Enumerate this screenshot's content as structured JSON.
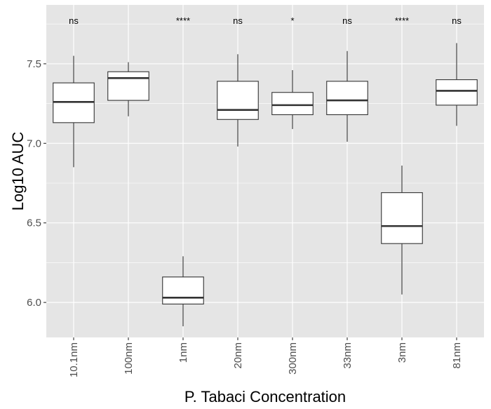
{
  "chart_data": {
    "type": "boxplot",
    "title": "",
    "xlabel": "P. Tabaci Concentration",
    "ylabel": "Log10 AUC",
    "ylim": [
      5.78,
      7.87
    ],
    "yticks": [
      6.0,
      6.5,
      7.0,
      7.5
    ],
    "ytick_labels": [
      "6.0",
      "6.5",
      "7.0",
      "7.5"
    ],
    "grid": true,
    "background": "#e5e5e5",
    "gridline_color": "#ffffff",
    "box_fill": "#ffffff",
    "box_stroke": "#333333",
    "categories": [
      "10.1nm",
      "100nm",
      "1nm",
      "20nm",
      "300nm",
      "33nm",
      "3nm",
      "81nm"
    ],
    "boxes": [
      {
        "category": "10.1nm",
        "whisker_low": 6.85,
        "q1": 7.13,
        "median": 7.26,
        "q3": 7.38,
        "whisker_high": 7.55,
        "significance": "ns"
      },
      {
        "category": "100nm",
        "whisker_low": 7.17,
        "q1": 7.27,
        "median": 7.41,
        "q3": 7.45,
        "whisker_high": 7.51,
        "significance": ""
      },
      {
        "category": "1nm",
        "whisker_low": 5.85,
        "q1": 5.99,
        "median": 6.03,
        "q3": 6.16,
        "whisker_high": 6.29,
        "significance": "****"
      },
      {
        "category": "20nm",
        "whisker_low": 6.98,
        "q1": 7.15,
        "median": 7.21,
        "q3": 7.39,
        "whisker_high": 7.56,
        "significance": "ns"
      },
      {
        "category": "300nm",
        "whisker_low": 7.09,
        "q1": 7.18,
        "median": 7.24,
        "q3": 7.32,
        "whisker_high": 7.46,
        "significance": "*"
      },
      {
        "category": "33nm",
        "whisker_low": 7.01,
        "q1": 7.18,
        "median": 7.27,
        "q3": 7.39,
        "whisker_high": 7.58,
        "significance": "ns"
      },
      {
        "category": "3nm",
        "whisker_low": 6.05,
        "q1": 6.37,
        "median": 6.48,
        "q3": 6.69,
        "whisker_high": 6.86,
        "significance": "****"
      },
      {
        "category": "81nm",
        "whisker_low": 7.11,
        "q1": 7.24,
        "median": 7.33,
        "q3": 7.4,
        "whisker_high": 7.63,
        "significance": "ns"
      }
    ]
  }
}
